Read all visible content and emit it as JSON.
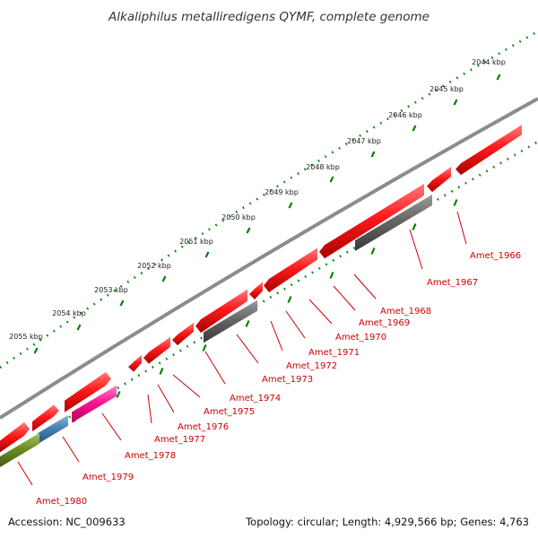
{
  "title": "Alkaliphilus metalliredigens QYMF, complete genome",
  "footer": {
    "accession": "Accession: NC_009633",
    "topology": "Topology: circular; Length: 4,929,566 bp; Genes: 4,763"
  },
  "colors": {
    "gene_red": "#ff1a1a",
    "gene_gray": "#666666",
    "gene_pink": "#ff1493",
    "gene_blue": "#4682b4",
    "gene_green": "#6b8e23",
    "backbone": "#8c8c8c",
    "tick_green": "#008000",
    "label_red": "#cc0000"
  },
  "kbp_ticks": [
    {
      "label": "2044 kbp"
    },
    {
      "label": "2045 kbp"
    },
    {
      "label": "2046 kbp"
    },
    {
      "label": "2047 kbp"
    },
    {
      "label": "2048 kbp"
    },
    {
      "label": "2049 kbp"
    },
    {
      "label": "2050 kbp"
    },
    {
      "label": "2051 kbp"
    },
    {
      "label": "2052 kbp"
    },
    {
      "label": "2053 kbp"
    },
    {
      "label": "2054 kbp"
    },
    {
      "label": "2055 kbp"
    }
  ],
  "gene_labels": [
    {
      "label": "Amet_1966"
    },
    {
      "label": "Amet_1967"
    },
    {
      "label": "Amet_1968"
    },
    {
      "label": "Amet_1969"
    },
    {
      "label": "Amet_1970"
    },
    {
      "label": "Amet_1971"
    },
    {
      "label": "Amet_1972"
    },
    {
      "label": "Amet_1973"
    },
    {
      "label": "Amet_1974"
    },
    {
      "label": "Amet_1975"
    },
    {
      "label": "Amet_1976"
    },
    {
      "label": "Amet_1977"
    },
    {
      "label": "Amet_1978"
    },
    {
      "label": "Amet_1979"
    },
    {
      "label": "Amet_1980"
    }
  ]
}
